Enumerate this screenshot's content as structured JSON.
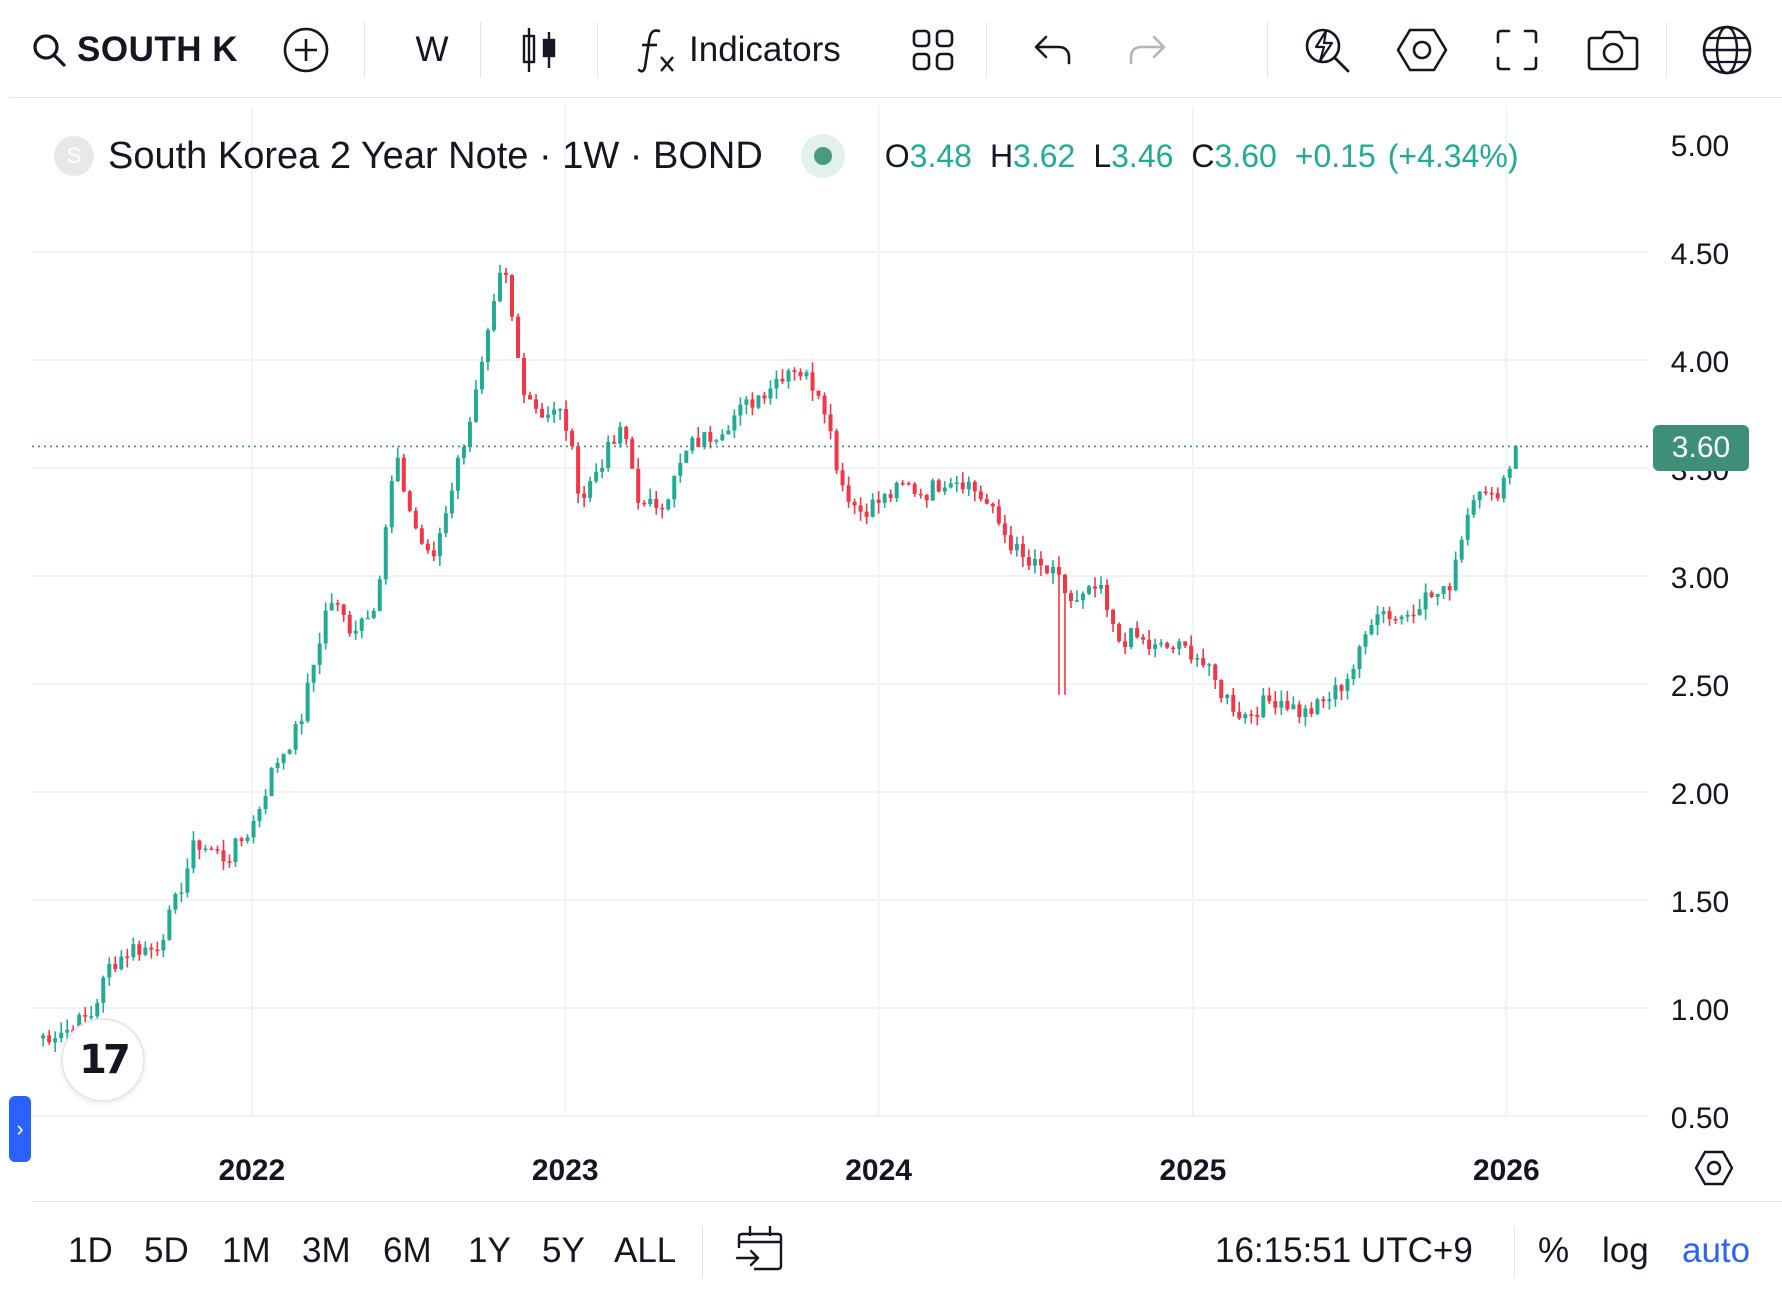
{
  "toolbar": {
    "symbol": "SOUTH K",
    "interval": "W",
    "indicators_label": "Indicators"
  },
  "legend": {
    "logo_letter": "S",
    "title": "South Korea 2 Year Note · 1W · BOND",
    "open_key": "O",
    "open": "3.48",
    "high_key": "H",
    "high": "3.62",
    "low_key": "L",
    "low": "3.46",
    "close_key": "C",
    "close": "3.60",
    "change": "+0.15",
    "change_pct": "(+4.34%)"
  },
  "last_price_label": "3.60",
  "y_axis_labels": [
    "5.00",
    "4.50",
    "4.00",
    "3.50",
    "3.00",
    "2.50",
    "2.00",
    "1.50",
    "1.00",
    "0.50"
  ],
  "x_axis_labels": [
    "2022",
    "2023",
    "2024",
    "2025",
    "2026"
  ],
  "bottom": {
    "ranges": [
      "1D",
      "5D",
      "1M",
      "3M",
      "6M",
      "1Y",
      "5Y",
      "ALL"
    ],
    "time": "16:15:51 UTC+9",
    "percent": "%",
    "log": "log",
    "auto": "auto"
  },
  "colors": {
    "up": "#22ab94",
    "down": "#f23645",
    "accent": "#2962ff",
    "last_price": "#3d8f77"
  },
  "icons": [
    "search-icon",
    "add-symbol-icon",
    "candles-icon",
    "function-icon",
    "layout-grid-icon",
    "undo-icon",
    "redo-icon",
    "quick-search-icon",
    "settings-icon",
    "fullscreen-icon",
    "camera-icon",
    "globe-icon",
    "calendar-goto-icon",
    "axis-settings-icon",
    "tradingview-logo-icon"
  ],
  "chart_data": {
    "type": "candlestick",
    "interval": "1W",
    "y_range": [
      0.5,
      5.0
    ],
    "x_range": [
      "2021-04-20",
      "2026-06-15"
    ],
    "grid": true,
    "last_price": 3.6,
    "anchors": [
      [
        "2021-04-26",
        0.86
      ],
      [
        "2021-06-01",
        0.9
      ],
      [
        "2021-06-28",
        0.97
      ],
      [
        "2021-07-20",
        1.2
      ],
      [
        "2021-08-16",
        1.28
      ],
      [
        "2021-09-10",
        1.27
      ],
      [
        "2021-10-01",
        1.45
      ],
      [
        "2021-10-28",
        1.77
      ],
      [
        "2021-12-03",
        1.69
      ],
      [
        "2022-01-01",
        1.84
      ],
      [
        "2022-01-28",
        2.13
      ],
      [
        "2022-02-25",
        2.3
      ],
      [
        "2022-04-01",
        2.9
      ],
      [
        "2022-04-28",
        2.75
      ],
      [
        "2022-05-27",
        2.9
      ],
      [
        "2022-06-17",
        3.55
      ],
      [
        "2022-07-08",
        3.25
      ],
      [
        "2022-07-29",
        3.05
      ],
      [
        "2022-08-26",
        3.48
      ],
      [
        "2022-09-23",
        3.9
      ],
      [
        "2022-10-21",
        4.45
      ],
      [
        "2022-11-11",
        3.9
      ],
      [
        "2022-12-02",
        3.76
      ],
      [
        "2022-12-30",
        3.75
      ],
      [
        "2023-01-20",
        3.35
      ],
      [
        "2023-02-10",
        3.52
      ],
      [
        "2023-03-10",
        3.68
      ],
      [
        "2023-03-31",
        3.3
      ],
      [
        "2023-04-28",
        3.36
      ],
      [
        "2023-05-26",
        3.6
      ],
      [
        "2023-06-23",
        3.66
      ],
      [
        "2023-08-04",
        3.8
      ],
      [
        "2023-09-22",
        3.98
      ],
      [
        "2023-10-27",
        3.85
      ],
      [
        "2023-11-17",
        3.45
      ],
      [
        "2023-12-08",
        3.3
      ],
      [
        "2024-01-05",
        3.35
      ],
      [
        "2024-02-02",
        3.42
      ],
      [
        "2024-02-23",
        3.38
      ],
      [
        "2024-03-22",
        3.46
      ],
      [
        "2024-04-12",
        3.44
      ],
      [
        "2024-05-03",
        3.35
      ],
      [
        "2024-05-31",
        3.17
      ],
      [
        "2024-06-21",
        3.05
      ],
      [
        "2024-07-05",
        3.04
      ],
      [
        "2024-07-26",
        2.99
      ],
      [
        "2024-08-16",
        2.86
      ],
      [
        "2024-09-13",
        2.95
      ],
      [
        "2024-10-04",
        2.7
      ],
      [
        "2024-10-25",
        2.72
      ],
      [
        "2024-11-15",
        2.66
      ],
      [
        "2024-12-06",
        2.67
      ],
      [
        "2025-01-03",
        2.65
      ],
      [
        "2025-01-31",
        2.48
      ],
      [
        "2025-02-28",
        2.35
      ],
      [
        "2025-03-21",
        2.4
      ],
      [
        "2025-04-11",
        2.44
      ],
      [
        "2025-05-09",
        2.36
      ],
      [
        "2025-05-30",
        2.4
      ],
      [
        "2025-06-20",
        2.48
      ],
      [
        "2025-07-11",
        2.6
      ],
      [
        "2025-08-01",
        2.86
      ],
      [
        "2025-08-29",
        2.8
      ],
      [
        "2025-09-26",
        2.9
      ],
      [
        "2025-10-24",
        2.92
      ],
      [
        "2025-11-07",
        3.15
      ],
      [
        "2025-11-28",
        3.45
      ],
      [
        "2025-12-12",
        3.33
      ],
      [
        "2026-01-02",
        3.48
      ],
      [
        "2026-01-12",
        3.6
      ]
    ]
  }
}
